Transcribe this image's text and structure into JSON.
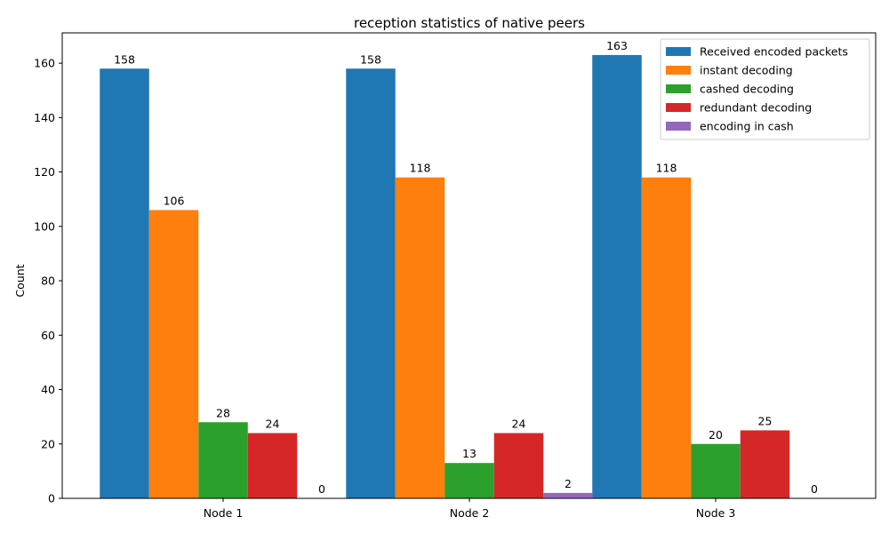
{
  "chart_data": {
    "type": "bar",
    "title": "reception statistics of native peers",
    "xlabel": "",
    "ylabel": "Count",
    "ylim": [
      0,
      171.15
    ],
    "yticks": [
      0,
      20,
      40,
      60,
      80,
      100,
      120,
      140,
      160
    ],
    "categories": [
      "Node 1",
      "Node 2",
      "Node 3"
    ],
    "legend_position": "top-right",
    "grid": false,
    "series": [
      {
        "name": "Received encoded packets",
        "color": "#1f77b4",
        "values": [
          158,
          158,
          163
        ]
      },
      {
        "name": "instant decoding",
        "color": "#ff7f0e",
        "values": [
          106,
          118,
          118
        ]
      },
      {
        "name": "cashed decoding",
        "color": "#2ca02c",
        "values": [
          28,
          13,
          20
        ]
      },
      {
        "name": "redundant decoding",
        "color": "#d62728",
        "values": [
          24,
          24,
          25
        ]
      },
      {
        "name": "encoding in cash",
        "color": "#9467bd",
        "values": [
          0,
          2,
          0
        ]
      }
    ]
  }
}
